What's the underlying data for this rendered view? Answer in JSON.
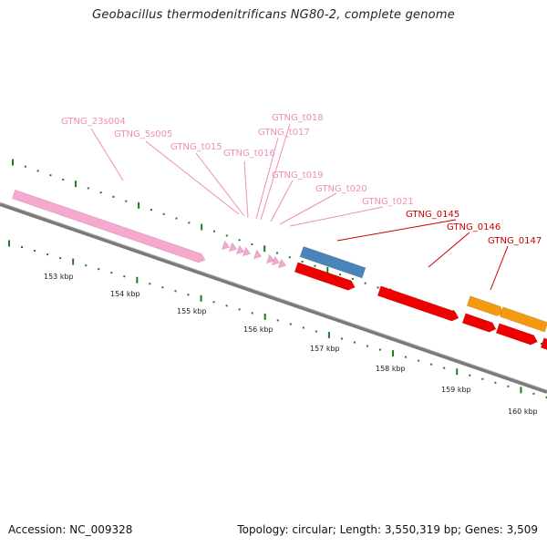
{
  "title": "Geobacillus thermodenitrificans NG80-2, complete genome",
  "footer": {
    "accession": "Accession: NC_009328",
    "topology": "Topology: circular; Length: 3,550,319 bp; Genes: 3,509"
  },
  "colors": {
    "rna_label": "#f08cbc",
    "cds_label": "#cc0000",
    "rrna": "#f7a8cf",
    "trna": "#f7a8cf",
    "cds_red": "#ee0000",
    "cds_blue": "#4a84b8",
    "cds_orange": "#f59a10",
    "backbone": "#7a7a7a",
    "tick": "#1e7a1e"
  },
  "scale_labels": [
    "153 kbp",
    "154 kbp",
    "155 kbp",
    "156 kbp",
    "157 kbp",
    "158 kbp",
    "159 kbp",
    "160 kbp"
  ],
  "rna_labels": [
    "GTNG_23s004",
    "GTNG_5s005",
    "GTNG_t015",
    "GTNG_t016",
    "GTNG_t017",
    "GTNG_t018",
    "GTNG_t019",
    "GTNG_t020",
    "GTNG_t021"
  ],
  "cds_labels": [
    "GTNG_0145",
    "GTNG_0146",
    "GTNG_0147"
  ]
}
